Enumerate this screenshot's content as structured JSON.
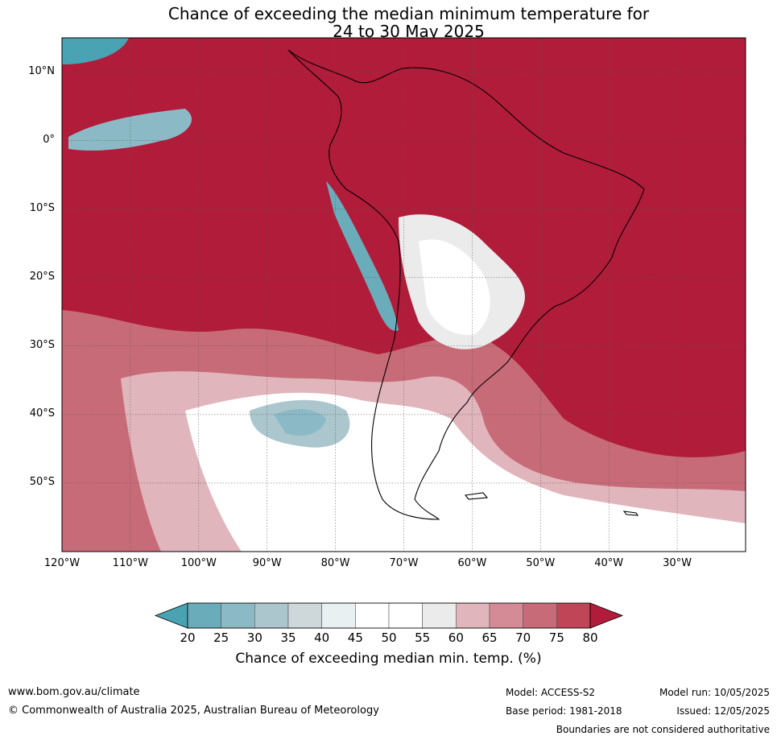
{
  "title_line1": "Chance of exceeding the median minimum temperature for",
  "title_line2": "24 to 30 May 2025",
  "lat_labels": [
    {
      "text": "10°N",
      "lat": 10
    },
    {
      "text": "0°",
      "lat": 0
    },
    {
      "text": "10°S",
      "lat": -10
    },
    {
      "text": "20°S",
      "lat": -20
    },
    {
      "text": "30°S",
      "lat": -30
    },
    {
      "text": "40°S",
      "lat": -40
    },
    {
      "text": "50°S",
      "lat": -50
    }
  ],
  "lon_labels": [
    {
      "text": "120°W",
      "lon": -120
    },
    {
      "text": "110°W",
      "lon": -110
    },
    {
      "text": "100°W",
      "lon": -100
    },
    {
      "text": "90°W",
      "lon": -90
    },
    {
      "text": "80°W",
      "lon": -80
    },
    {
      "text": "70°W",
      "lon": -70
    },
    {
      "text": "60°W",
      "lon": -60
    },
    {
      "text": "50°W",
      "lon": -50
    },
    {
      "text": "40°W",
      "lon": -40
    },
    {
      "text": "30°W",
      "lon": -30
    }
  ],
  "map_extent": {
    "lon": [
      -120,
      -20
    ],
    "lat": [
      -60,
      15
    ]
  },
  "colorbar": {
    "title": "Chance of exceeding median min. temp. (%)",
    "ticks": [
      "20",
      "25",
      "30",
      "35",
      "40",
      "45",
      "50",
      "55",
      "60",
      "65",
      "70",
      "75",
      "80"
    ],
    "under_color": "#4aa3b3",
    "over_color": "#b01c3a",
    "colors": [
      "#6aacba",
      "#8bbac6",
      "#abc6cd",
      "#ced8da",
      "#e9f0f2",
      "#ffffff",
      "#ffffff",
      "#ebebeb",
      "#e1b5bc",
      "#d48b96",
      "#c86b78",
      "#c04556"
    ]
  },
  "footer": {
    "website": "www.bom.gov.au/climate",
    "copyright": "© Commonwealth of Australia 2025, Australian Bureau of Meteorology",
    "model": "Model: ACCESS-S2",
    "base_period": "Base period: 1981-2018",
    "model_run": "Model run: 10/05/2025",
    "issued": "Issued: 12/05/2025",
    "disclaimer": "Boundaries are not considered authoritative"
  }
}
